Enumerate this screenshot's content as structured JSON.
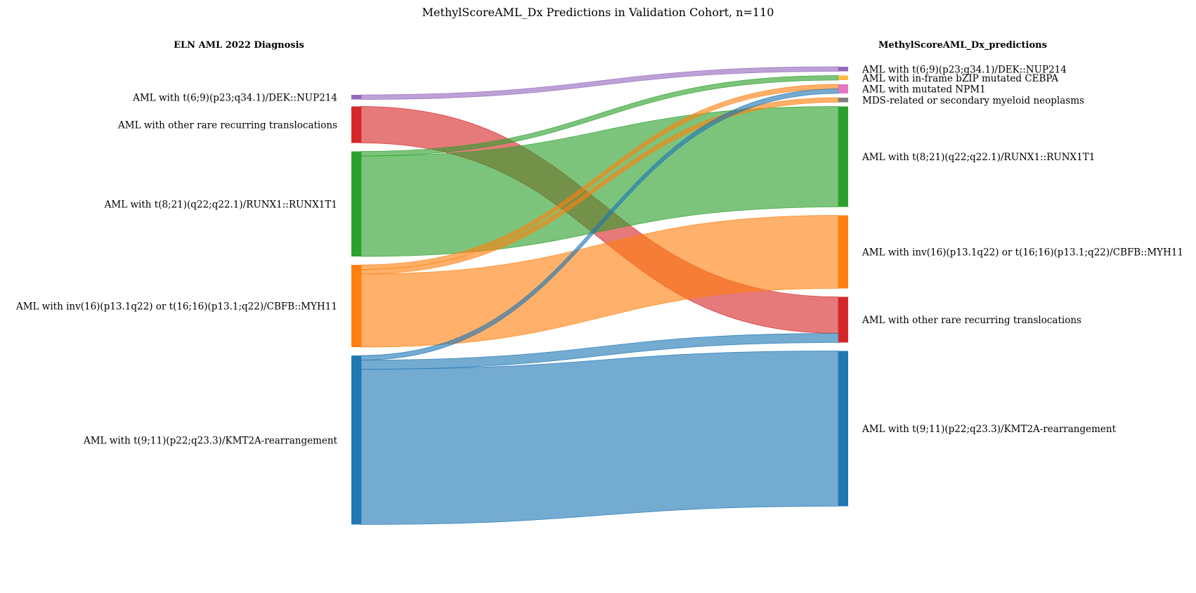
{
  "chart_data": {
    "type": "sankey",
    "title": "MethylScoreAML_Dx Predictions in Validation Cohort, n=110",
    "left_header": "ELN AML 2022 Diagnosis",
    "right_header": "MethylScoreAML_Dx_predictions",
    "colors": {
      "t69": "#9467bd",
      "cebpa": "#ffbb44",
      "npm1": "#e377c2",
      "mds": "#7f7f7f",
      "t821": "#2ca02c",
      "inv16": "#ff7f0e",
      "other": "#d62728",
      "t911": "#1f77b4"
    },
    "left_nodes": [
      {
        "id": "t69",
        "label": "AML with t(6;9)(p23;q34.1)/DEK::NUP214",
        "value": 1
      },
      {
        "id": "other",
        "label": "AML with other rare recurring translocations",
        "value": 8
      },
      {
        "id": "t821",
        "label": "AML with t(8;21)(q22;q22.1)/RUNX1::RUNX1T1",
        "value": 23
      },
      {
        "id": "inv16",
        "label": "AML with inv(16)(p13.1q22) or t(16;16)(p13.1;q22)/CBFB::MYH11",
        "value": 18
      },
      {
        "id": "t911",
        "label": "AML with t(9;11)(p22;q23.3)/KMT2A-rearrangement",
        "value": 37
      }
    ],
    "right_nodes": [
      {
        "id": "t69",
        "label": "AML with t(6;9)(p23;q34.1)/DEK::NUP214",
        "value": 1
      },
      {
        "id": "cebpa",
        "label": "AML with in-frame bZIP mutated CEBPA",
        "value": 1
      },
      {
        "id": "npm1",
        "label": "AML with mutated NPM1",
        "value": 2
      },
      {
        "id": "mds",
        "label": "MDS-related or secondary myeloid neoplasms",
        "value": 1
      },
      {
        "id": "t821",
        "label": "AML with t(8;21)(q22;q22.1)/RUNX1::RUNX1T1",
        "value": 22
      },
      {
        "id": "inv16",
        "label": "AML with inv(16)(p13.1q22) or t(16;16)(p13.1;q22)/CBFB::MYH11",
        "value": 16
      },
      {
        "id": "other",
        "label": "AML with other rare recurring translocations",
        "value": 10
      },
      {
        "id": "t911",
        "label": "AML with t(9;11)(p22;q23.3)/KMT2A-rearrangement",
        "value": 34
      }
    ],
    "flows": [
      {
        "source": "t69",
        "target": "t69",
        "value": 1
      },
      {
        "source": "other",
        "target": "other",
        "value": 8
      },
      {
        "source": "t821",
        "target": "cebpa",
        "value": 1
      },
      {
        "source": "t821",
        "target": "t821",
        "value": 22
      },
      {
        "source": "inv16",
        "target": "npm1",
        "value": 1
      },
      {
        "source": "inv16",
        "target": "mds",
        "value": 1
      },
      {
        "source": "inv16",
        "target": "inv16",
        "value": 16
      },
      {
        "source": "t911",
        "target": "npm1",
        "value": 1
      },
      {
        "source": "t911",
        "target": "other",
        "value": 2
      },
      {
        "source": "t911",
        "target": "t911",
        "value": 34
      }
    ]
  }
}
